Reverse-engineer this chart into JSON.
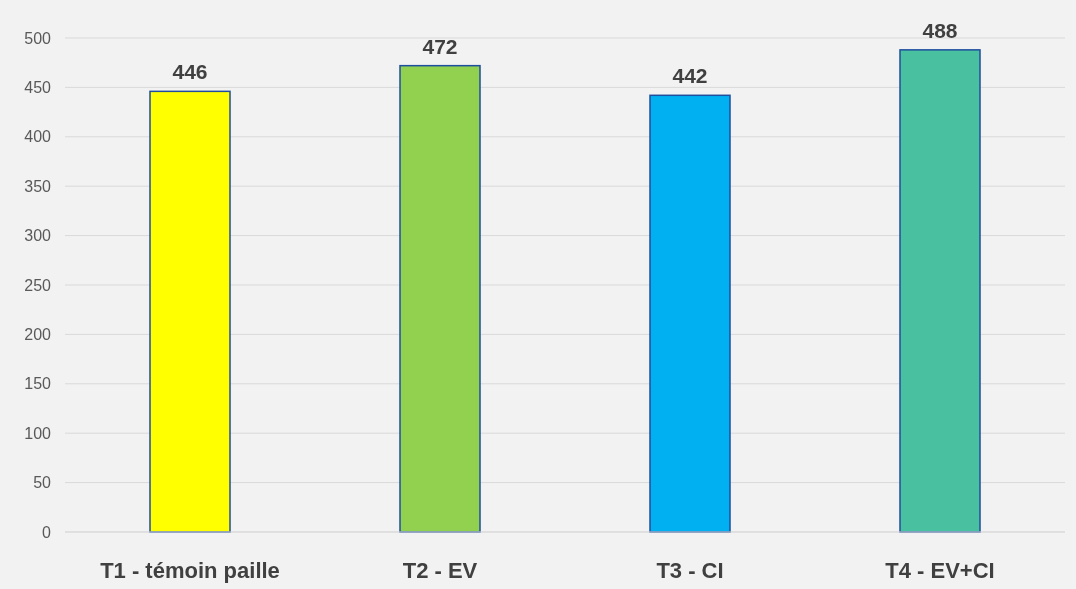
{
  "chart_data": {
    "type": "bar",
    "categories": [
      "T1 - témoin paille",
      "T2 - EV",
      "T3 - CI",
      "T4 - EV+CI"
    ],
    "values": [
      446,
      472,
      442,
      488
    ],
    "colors": [
      "#ffff00",
      "#92d050",
      "#00b0f0",
      "#49c0a0"
    ],
    "ylim": [
      0,
      500
    ],
    "yticks": [
      0,
      50,
      100,
      150,
      200,
      250,
      300,
      350,
      400,
      450,
      500
    ],
    "grid": "y",
    "data_labels": true
  }
}
